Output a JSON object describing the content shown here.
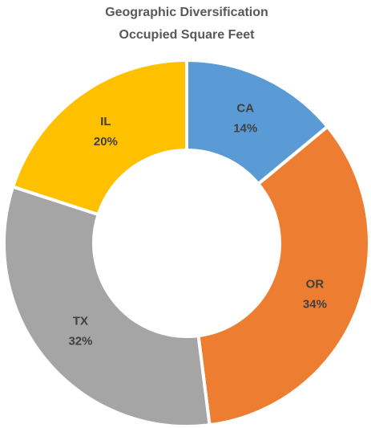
{
  "chart_data": {
    "type": "donut",
    "title": "Geographic Diversification",
    "subtitle": "Occupied Square Feet",
    "categories": [
      "CA",
      "OR",
      "TX",
      "IL"
    ],
    "values": [
      14,
      34,
      32,
      20
    ],
    "value_labels": [
      "14%",
      "34%",
      "32%",
      "20%"
    ],
    "colors": [
      "#5b9bd5",
      "#ed7d31",
      "#a5a5a5",
      "#ffc000"
    ]
  }
}
